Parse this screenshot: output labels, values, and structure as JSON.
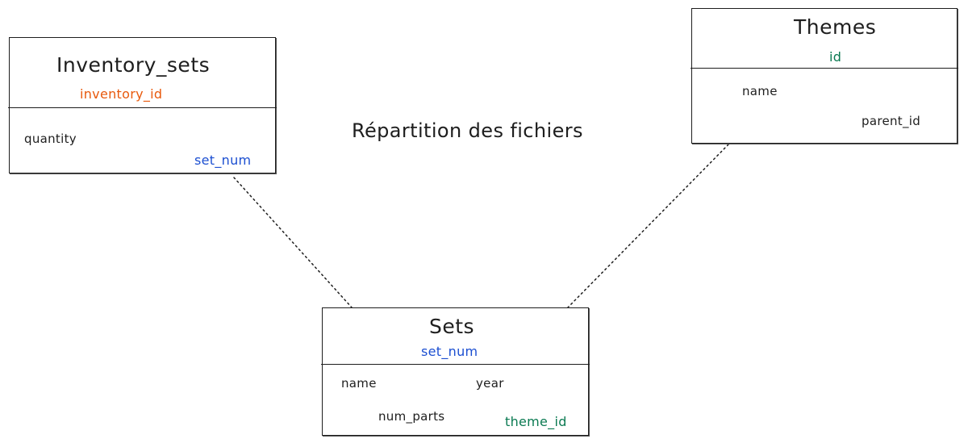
{
  "diagram": {
    "title": "Répartition des fichiers"
  },
  "colors": {
    "stroke": "#1e1e1e",
    "primary_key_orange": "#e8590c",
    "key_blue": "#1c4fd1",
    "key_green": "#0b7a52"
  },
  "entities": {
    "inventory_sets": {
      "title": "Inventory_sets",
      "key": "inventory_id",
      "fields": {
        "quantity": "quantity",
        "set_num": "set_num"
      }
    },
    "themes": {
      "title": "Themes",
      "key": "id",
      "fields": {
        "name": "name",
        "parent_id": "parent_id"
      }
    },
    "sets": {
      "title": "Sets",
      "key": "set_num",
      "fields": {
        "name": "name",
        "year": "year",
        "num_parts": "num_parts",
        "theme_id": "theme_id"
      }
    }
  }
}
